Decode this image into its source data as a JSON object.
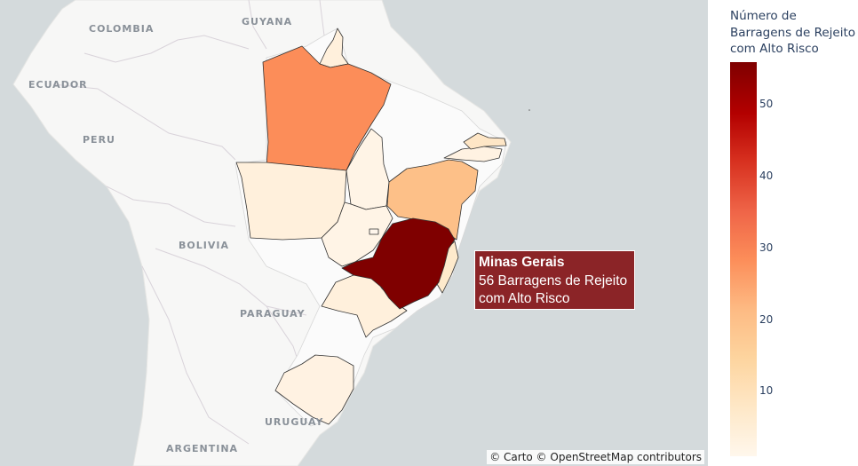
{
  "map": {
    "country_labels": [
      "GUYANA",
      "COLOMBIA",
      "ECUADOR",
      "PERU",
      "BOLIVIA",
      "PARAGUAY",
      "URUGUAY",
      "ARGENTINA"
    ],
    "attribution": "© Carto © OpenStreetMap contributors",
    "states": [
      {
        "id": "pa",
        "value": 31,
        "color": "#fc8d59"
      },
      {
        "id": "ba",
        "value": 20,
        "color": "#fdc088"
      },
      {
        "id": "mg",
        "value": 56,
        "color": "#7f0000"
      },
      {
        "id": "ap",
        "value": 4,
        "color": "#fff0dc"
      },
      {
        "id": "mt",
        "value": 4,
        "color": "#fff0dc"
      },
      {
        "id": "to",
        "value": 2,
        "color": "#fff4e6"
      },
      {
        "id": "go",
        "value": 2,
        "color": "#fff4e6"
      },
      {
        "id": "sp",
        "value": 5,
        "color": "#fff0dc"
      },
      {
        "id": "rs",
        "value": 3,
        "color": "#fff2e2"
      },
      {
        "id": "es",
        "value": 8,
        "color": "#feeacc"
      },
      {
        "id": "pb",
        "value": 10,
        "color": "#fee6c6"
      },
      {
        "id": "pe",
        "value": 3,
        "color": "#fff2e2"
      },
      {
        "id": "df",
        "value": 1,
        "color": "#fff6ec"
      }
    ]
  },
  "tooltip": {
    "title": "Minas Gerais",
    "line1": "56 Barragens de Rejeito",
    "line2": "com Alto Risco"
  },
  "legend": {
    "title_lines": [
      "Número de",
      "Barragens de Rejeito",
      "com Alto Risco"
    ],
    "ticks": [
      {
        "label": "50",
        "value": 50
      },
      {
        "label": "40",
        "value": 40
      },
      {
        "label": "30",
        "value": 30
      },
      {
        "label": "20",
        "value": 20
      },
      {
        "label": "10",
        "value": 10
      }
    ],
    "range": [
      1,
      56
    ],
    "colorscale": "OrRd"
  }
}
